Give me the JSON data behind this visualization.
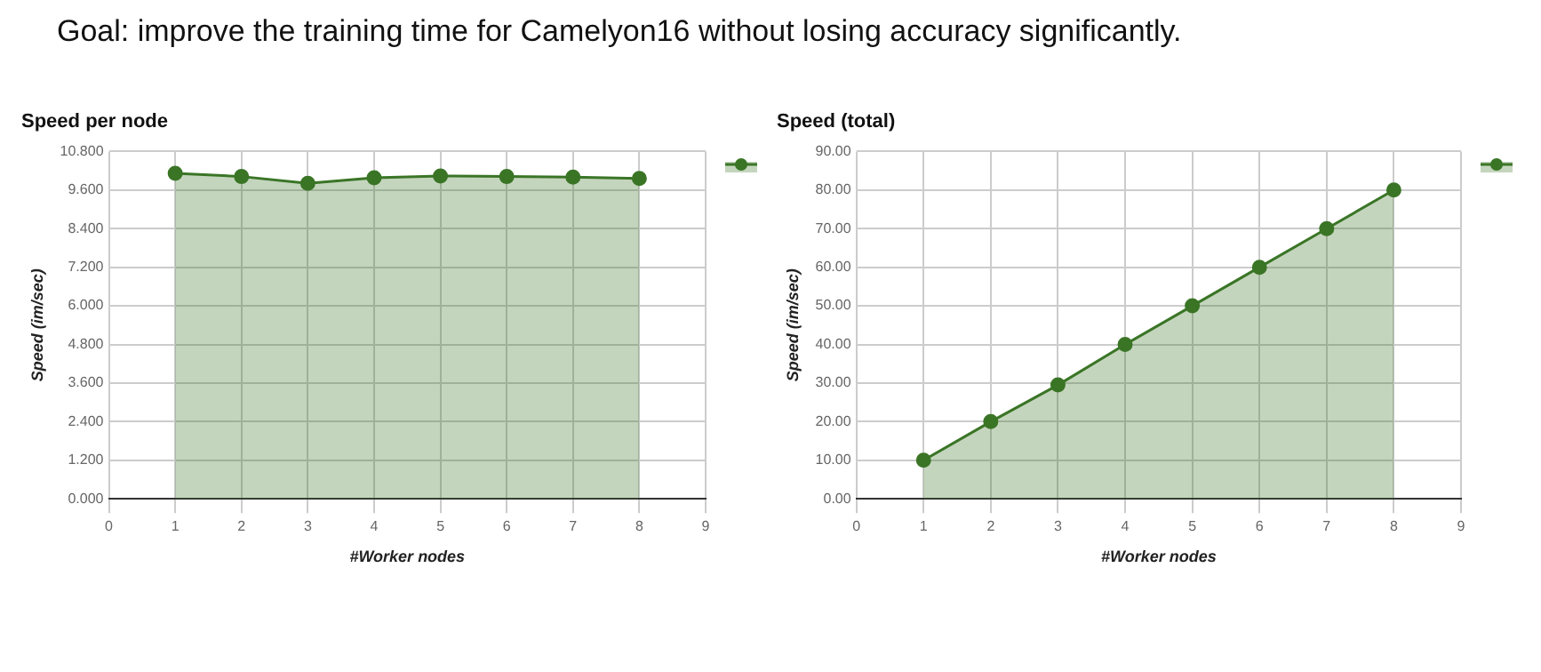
{
  "chart_data": [
    {
      "type": "area",
      "title": "Speed per node",
      "xlabel": "#Worker nodes",
      "ylabel": "Speed (im/sec)",
      "annotations": [
        "Goal: improve the training time for Camelyon16 without losing accuracy significantly."
      ],
      "x": [
        1,
        2,
        3,
        4,
        5,
        6,
        7,
        8
      ],
      "series": [
        {
          "color": "#3a7526",
          "values": [
            10.12,
            10.02,
            9.81,
            9.98,
            10.04,
            10.02,
            10.0,
            9.96
          ]
        }
      ],
      "xlim": [
        0,
        9
      ],
      "xticks": [
        0,
        1,
        2,
        3,
        4,
        5,
        6,
        7,
        8,
        9
      ],
      "ylim": [
        0,
        10.8
      ],
      "yticks": [
        {
          "value": 0,
          "label": "0.000"
        },
        {
          "value": 1.2,
          "label": "1.200"
        },
        {
          "value": 2.4,
          "label": "2.400"
        },
        {
          "value": 3.6,
          "label": "3.600"
        },
        {
          "value": 4.8,
          "label": "4.800"
        },
        {
          "value": 6,
          "label": "6.000"
        },
        {
          "value": 7.2,
          "label": "7.200"
        },
        {
          "value": 8.4,
          "label": "8.400"
        },
        {
          "value": 9.6,
          "label": "9.600"
        },
        {
          "value": 10.8,
          "label": "10.800"
        }
      ],
      "grid": true,
      "marker": "circle"
    },
    {
      "type": "area",
      "title": "Speed (total)",
      "xlabel": "#Worker nodes",
      "ylabel": "Speed (im/sec)",
      "x": [
        1,
        2,
        3,
        4,
        5,
        6,
        7,
        8
      ],
      "series": [
        {
          "color": "#3a7526",
          "values": [
            10,
            20,
            29.5,
            40,
            50,
            60,
            70,
            80
          ]
        }
      ],
      "xlim": [
        0,
        9
      ],
      "xticks": [
        0,
        1,
        2,
        3,
        4,
        5,
        6,
        7,
        8,
        9
      ],
      "ylim": [
        0,
        90
      ],
      "yticks": [
        {
          "value": 0,
          "label": "0.00"
        },
        {
          "value": 10,
          "label": "10.00"
        },
        {
          "value": 20,
          "label": "20.00"
        },
        {
          "value": 30,
          "label": "30.00"
        },
        {
          "value": 40,
          "label": "40.00"
        },
        {
          "value": 50,
          "label": "50.00"
        },
        {
          "value": 60,
          "label": "60.00"
        },
        {
          "value": 70,
          "label": "70.00"
        },
        {
          "value": 80,
          "label": "80.00"
        },
        {
          "value": 90,
          "label": "90.00"
        }
      ],
      "grid": true,
      "marker": "circle"
    }
  ]
}
